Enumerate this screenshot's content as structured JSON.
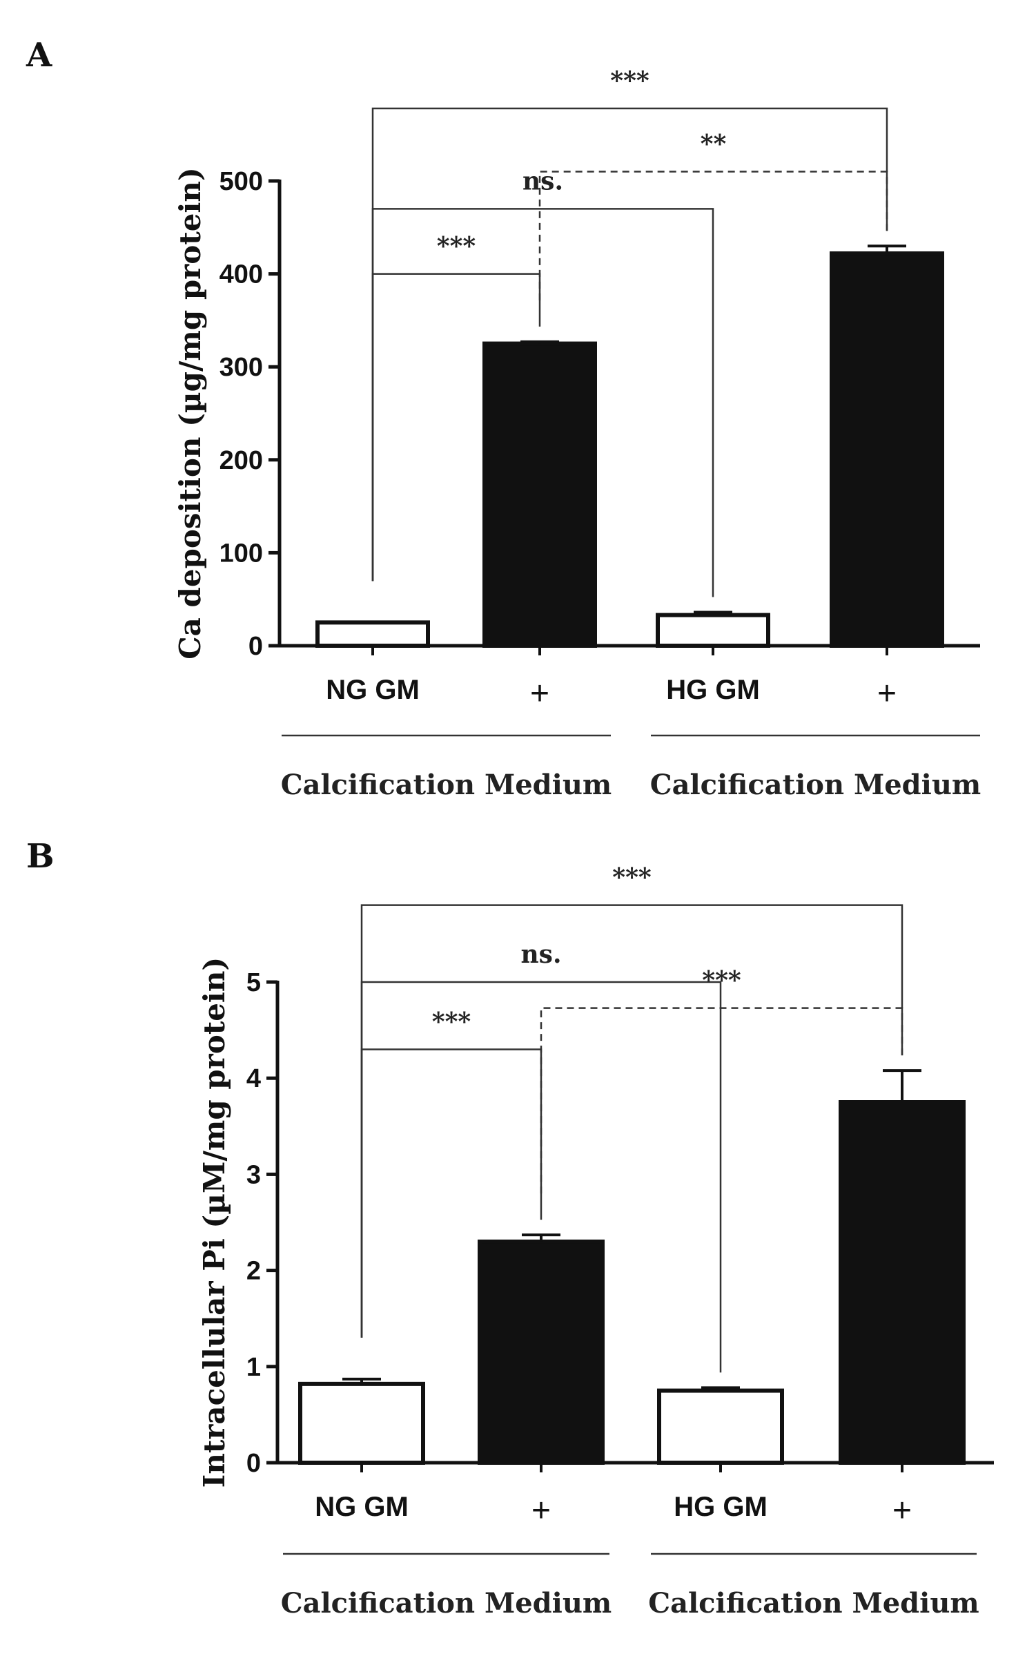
{
  "chart_data": [
    {
      "panel": "A",
      "type": "bar",
      "ylabel": "Ca deposition (µg/mg protein)",
      "ylim": [
        0,
        500
      ],
      "yticks": [
        "0",
        "100",
        "200",
        "300",
        "400",
        "500"
      ],
      "categories": [
        "NG GM",
        "+",
        "HG GM",
        "+"
      ],
      "values": [
        25,
        325,
        33,
        422
      ],
      "errors": [
        0,
        2,
        3,
        8
      ],
      "fill": [
        "#ffffff",
        "#111111",
        "#ffffff",
        "#111111"
      ],
      "groups": [
        "Calcification Medium",
        "Calcification Medium"
      ],
      "significance": [
        {
          "label": "***",
          "from": 0,
          "to": 1,
          "level": 400,
          "dashed": false
        },
        {
          "label": "ns.",
          "from": 0,
          "to": 2,
          "level": 470,
          "dashed": false
        },
        {
          "label": "**",
          "from": 1,
          "to": 3,
          "level": 510,
          "dashed": true
        },
        {
          "label": "***",
          "from": 0,
          "to": 3,
          "level": 578,
          "dashed": false
        }
      ]
    },
    {
      "panel": "B",
      "type": "bar",
      "ylabel": "Intracellular Pi (µM/mg protein)",
      "ylim": [
        0,
        5
      ],
      "yticks": [
        "0",
        "1",
        "2",
        "3",
        "4",
        "5"
      ],
      "categories": [
        "NG GM",
        "+",
        "HG GM",
        "+"
      ],
      "values": [
        0.82,
        2.3,
        0.75,
        3.75
      ],
      "errors": [
        0.05,
        0.07,
        0.03,
        0.33
      ],
      "fill": [
        "#ffffff",
        "#111111",
        "#ffffff",
        "#111111"
      ],
      "groups": [
        "Calcification Medium",
        "Calcification Medium"
      ],
      "significance": [
        {
          "label": "***",
          "from": 0,
          "to": 1,
          "level": 4.3,
          "dashed": false
        },
        {
          "label": "ns.",
          "from": 0,
          "to": 2,
          "level": 5.0,
          "dashed": false
        },
        {
          "label": "***",
          "from": 1,
          "to": 3,
          "level": 4.73,
          "dashed": true
        },
        {
          "label": "***",
          "from": 0,
          "to": 3,
          "level": 5.8,
          "dashed": false
        }
      ]
    }
  ]
}
